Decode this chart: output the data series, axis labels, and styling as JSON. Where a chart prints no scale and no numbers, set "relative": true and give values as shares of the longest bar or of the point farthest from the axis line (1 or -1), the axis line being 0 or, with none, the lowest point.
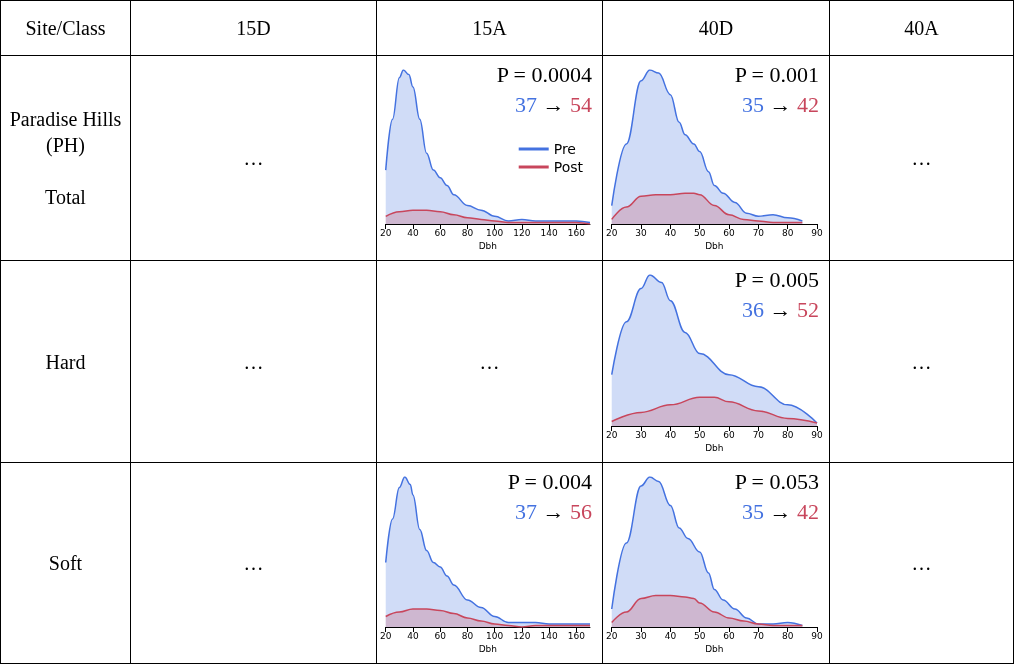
{
  "chart_data": [
    {
      "type": "other",
      "annotations": [
        "Site/Class",
        "15D",
        "15A",
        "40D",
        "40A",
        "Paradise Hills\n(PH)\n\nTotal",
        "…",
        "…",
        "Hard",
        "…",
        "…",
        "…",
        "Soft",
        "…",
        "…"
      ]
    },
    {
      "type": "area",
      "xlabel": "Dbh",
      "relative": true,
      "xlim": [
        20,
        170
      ],
      "xticks": [
        20,
        40,
        60,
        80,
        100,
        120,
        140,
        160
      ],
      "legend": "right",
      "annotations": [
        "P = 0.0004",
        "37",
        "→",
        "54"
      ],
      "series": [
        {
          "name": "Pre",
          "color": "#4472e0",
          "x": [
            20,
            25,
            30,
            33,
            37,
            40,
            45,
            50,
            55,
            60,
            65,
            70,
            80,
            90,
            100,
            110,
            120,
            130,
            140,
            150,
            160,
            170
          ],
          "values": [
            0.35,
            0.68,
            0.95,
            1.0,
            0.97,
            0.89,
            0.68,
            0.46,
            0.35,
            0.3,
            0.25,
            0.19,
            0.12,
            0.09,
            0.05,
            0.02,
            0.03,
            0.02,
            0.02,
            0.02,
            0.02,
            0.01
          ]
        },
        {
          "name": "Post",
          "color": "#c8465c",
          "x": [
            20,
            30,
            40,
            50,
            60,
            70,
            80,
            90,
            100,
            110,
            120,
            130,
            140,
            150,
            160,
            170
          ],
          "values": [
            0.05,
            0.08,
            0.09,
            0.09,
            0.08,
            0.06,
            0.04,
            0.03,
            0.02,
            0.01,
            0.01,
            0.01,
            0.01,
            0.01,
            0.01,
            0.0
          ]
        }
      ]
    },
    {
      "type": "area",
      "xlabel": "Dbh",
      "relative": true,
      "xlim": [
        20,
        90
      ],
      "xticks": [
        20,
        30,
        40,
        50,
        60,
        70,
        80,
        90
      ],
      "annotations": [
        "P = 0.001",
        "35",
        "→",
        "42"
      ],
      "series": [
        {
          "color": "#4472e0",
          "x": [
            20,
            25,
            30,
            33,
            36,
            40,
            43,
            45,
            48,
            50,
            53,
            55,
            58,
            62,
            66,
            70,
            75,
            80,
            85
          ],
          "values": [
            0.12,
            0.52,
            0.93,
            1.0,
            0.98,
            0.84,
            0.66,
            0.58,
            0.52,
            0.47,
            0.34,
            0.25,
            0.2,
            0.14,
            0.07,
            0.05,
            0.06,
            0.04,
            0.02
          ]
        },
        {
          "color": "#c8465c",
          "x": [
            20,
            25,
            30,
            35,
            40,
            45,
            48,
            50,
            55,
            60,
            65,
            70,
            75,
            80,
            85
          ],
          "values": [
            0.03,
            0.11,
            0.18,
            0.19,
            0.19,
            0.2,
            0.2,
            0.19,
            0.12,
            0.06,
            0.03,
            0.02,
            0.01,
            0.01,
            0.01
          ]
        }
      ]
    },
    {
      "type": "area",
      "xlabel": "Dbh",
      "relative": true,
      "xlim": [
        20,
        90
      ],
      "xticks": [
        20,
        30,
        40,
        50,
        60,
        70,
        80,
        90
      ],
      "annotations": [
        "P = 0.005",
        "36",
        "→",
        "52"
      ],
      "series": [
        {
          "color": "#4472e0",
          "x": [
            20,
            25,
            30,
            33,
            37,
            40,
            45,
            50,
            60,
            70,
            80,
            90
          ],
          "values": [
            0.34,
            0.69,
            0.91,
            1.0,
            0.95,
            0.83,
            0.62,
            0.48,
            0.34,
            0.26,
            0.14,
            0.02
          ]
        },
        {
          "color": "#c8465c",
          "x": [
            20,
            30,
            40,
            50,
            55,
            60,
            70,
            80,
            90
          ],
          "values": [
            0.03,
            0.09,
            0.14,
            0.19,
            0.19,
            0.16,
            0.1,
            0.05,
            0.02
          ]
        }
      ]
    },
    {
      "type": "area",
      "xlabel": "Dbh",
      "relative": true,
      "xlim": [
        20,
        170
      ],
      "xticks": [
        20,
        40,
        60,
        80,
        100,
        120,
        140,
        160
      ],
      "annotations": [
        "P = 0.004",
        "37",
        "→",
        "56"
      ],
      "series": [
        {
          "color": "#4472e0",
          "x": [
            20,
            25,
            30,
            34,
            38,
            40,
            45,
            50,
            55,
            60,
            65,
            70,
            80,
            90,
            100,
            110,
            120,
            130,
            140,
            160,
            170
          ],
          "values": [
            0.43,
            0.72,
            0.93,
            1.0,
            0.95,
            0.88,
            0.65,
            0.51,
            0.43,
            0.4,
            0.34,
            0.28,
            0.18,
            0.13,
            0.07,
            0.03,
            0.03,
            0.03,
            0.02,
            0.02,
            0.02
          ]
        },
        {
          "color": "#c8465c",
          "x": [
            20,
            30,
            40,
            50,
            60,
            70,
            80,
            90,
            100,
            110,
            120,
            130,
            140,
            150,
            160,
            170
          ],
          "values": [
            0.07,
            0.1,
            0.12,
            0.12,
            0.11,
            0.09,
            0.06,
            0.04,
            0.02,
            0.01,
            0.0,
            0.01,
            0.01,
            0.01,
            0.01,
            0.01
          ]
        }
      ]
    },
    {
      "type": "area",
      "xlabel": "Dbh",
      "relative": true,
      "xlim": [
        20,
        90
      ],
      "xticks": [
        20,
        30,
        40,
        50,
        60,
        70,
        80,
        90
      ],
      "annotations": [
        "P = 0.053",
        "35",
        "→",
        "42"
      ],
      "series": [
        {
          "color": "#4472e0",
          "x": [
            20,
            25,
            30,
            33,
            36,
            40,
            43,
            46,
            50,
            53,
            55,
            58,
            62,
            66,
            70,
            75,
            80,
            85
          ],
          "values": [
            0.12,
            0.56,
            0.94,
            1.0,
            0.97,
            0.81,
            0.66,
            0.59,
            0.5,
            0.36,
            0.25,
            0.18,
            0.12,
            0.06,
            0.02,
            0.02,
            0.03,
            0.01
          ]
        },
        {
          "color": "#c8465c",
          "x": [
            20,
            25,
            30,
            35,
            40,
            45,
            48,
            50,
            55,
            60,
            65,
            70,
            75,
            80,
            85
          ],
          "values": [
            0.03,
            0.1,
            0.19,
            0.21,
            0.21,
            0.2,
            0.19,
            0.16,
            0.1,
            0.06,
            0.04,
            0.02,
            0.01,
            0.01,
            0.01
          ]
        }
      ]
    }
  ]
}
